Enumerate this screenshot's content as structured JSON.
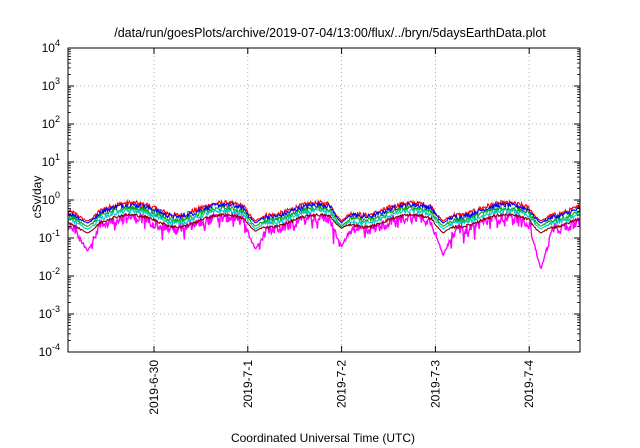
{
  "chart_data": {
    "type": "line",
    "title": "/data/run/goesPlots/archive/2019-07-04/13:00/flux/../bryn/5daysEarthData.plot",
    "xlabel": "Coordinated Universal Time (UTC)",
    "ylabel": "cSv/day",
    "yscale": "log",
    "ylim": [
      0.0001,
      10000
    ],
    "y_ticks": [
      {
        "value": 0.0001,
        "base": "10",
        "exp": "-4"
      },
      {
        "value": 0.001,
        "base": "10",
        "exp": "-3"
      },
      {
        "value": 0.01,
        "base": "10",
        "exp": "-2"
      },
      {
        "value": 0.1,
        "base": "10",
        "exp": "-1"
      },
      {
        "value": 1,
        "base": "10",
        "exp": "0"
      },
      {
        "value": 10,
        "base": "10",
        "exp": "1"
      },
      {
        "value": 100,
        "base": "10",
        "exp": "2"
      },
      {
        "value": 1000,
        "base": "10",
        "exp": "3"
      },
      {
        "value": 10000,
        "base": "10",
        "exp": "4"
      }
    ],
    "xlim": [
      "2019-06-29T02:00",
      "2019-07-04T13:00"
    ],
    "x_ticks": [
      "2019-6-30",
      "2019-7-1",
      "2019-7-2",
      "2019-7-3",
      "2019-7-4"
    ],
    "grid": true,
    "series": [
      {
        "color": "#ff0000",
        "baseline": 0.62,
        "variability": 0.15
      },
      {
        "color": "#0000ff",
        "baseline": 0.55,
        "variability": 0.15
      },
      {
        "color": "#00aa00",
        "baseline": 0.45,
        "variability": 0.13
      },
      {
        "color": "#00cccc",
        "baseline": 0.38,
        "variability": 0.13
      },
      {
        "color": "#ff00ff",
        "baseline": 0.26,
        "variability": 0.3
      },
      {
        "color": "#880000",
        "baseline": 0.3,
        "variability": 0.08
      }
    ],
    "dips": [
      {
        "time": "2019-06-29T07:00",
        "min": 0.045
      },
      {
        "time": "2019-07-01T02:00",
        "min": 0.05
      },
      {
        "time": "2019-07-02T00:00",
        "min": 0.06
      },
      {
        "time": "2019-07-03T02:00",
        "min": 0.035
      },
      {
        "time": "2019-07-04T03:00",
        "min": 0.015
      }
    ]
  }
}
